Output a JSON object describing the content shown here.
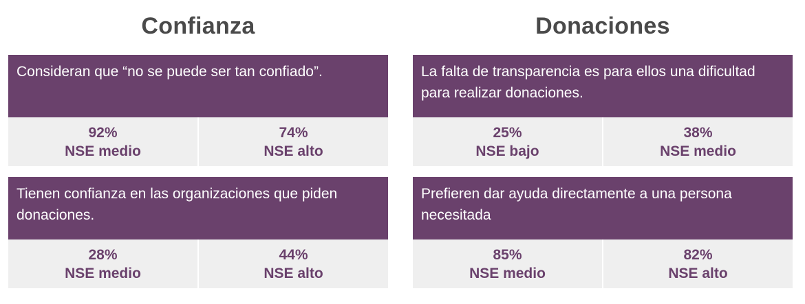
{
  "columns": [
    {
      "title": "Confianza",
      "cards": [
        {
          "statement": "Consideran que “no se puede ser tan confiado”.",
          "stats": [
            {
              "value": "92%",
              "label": "NSE medio"
            },
            {
              "value": "74%",
              "label": "NSE alto"
            }
          ]
        },
        {
          "statement": "Tienen confianza en las organizaciones que piden donaciones.",
          "stats": [
            {
              "value": "28%",
              "label": "NSE medio"
            },
            {
              "value": "44%",
              "label": "NSE alto"
            }
          ]
        }
      ]
    },
    {
      "title": "Donaciones",
      "cards": [
        {
          "statement": "La falta de transparencia es para ellos una dificultad para realizar donaciones.",
          "stats": [
            {
              "value": "25%",
              "label": "NSE bajo"
            },
            {
              "value": "38%",
              "label": "NSE medio"
            }
          ]
        },
        {
          "statement": "Prefieren dar ayuda directamente a una persona necesitada",
          "stats": [
            {
              "value": "85%",
              "label": "NSE medio"
            },
            {
              "value": "82%",
              "label": "NSE alto"
            }
          ]
        }
      ]
    }
  ],
  "colors": {
    "accent": "#6a416c",
    "stat_background": "#efefef",
    "title_text": "#4a4a4a"
  }
}
